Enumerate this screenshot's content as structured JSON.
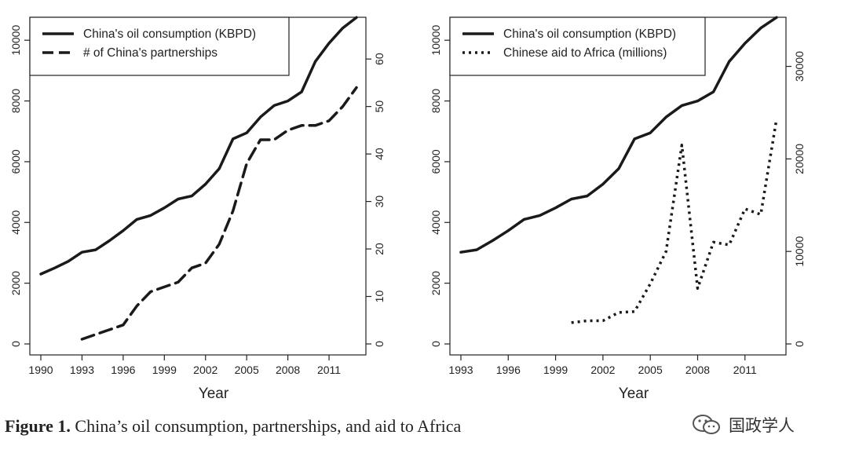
{
  "chart_data": [
    {
      "type": "line",
      "xlabel": "Year",
      "x_ticks": [
        "1990",
        "1993",
        "1996",
        "1999",
        "2002",
        "2005",
        "2008",
        "2011"
      ],
      "xlim": [
        1990,
        2013
      ],
      "y_left_ticks": [
        "0",
        "2000",
        "4000",
        "6000",
        "8000",
        "10000"
      ],
      "ylim_left": [
        0,
        10600
      ],
      "y_right_ticks": [
        "0",
        "10",
        "20",
        "30",
        "40",
        "50",
        "60"
      ],
      "ylim_right": [
        0,
        67.8
      ],
      "legend_position": "top-left",
      "series": [
        {
          "name": "China's oil consumption (KBPD)",
          "axis": "left",
          "style": "solid",
          "x": [
            1990,
            1991,
            1992,
            1993,
            1994,
            1995,
            1996,
            1997,
            1998,
            1999,
            2000,
            2001,
            2002,
            2003,
            2004,
            2005,
            2006,
            2007,
            2008,
            2009,
            2010,
            2011,
            2012,
            2013
          ],
          "values": [
            2300,
            2500,
            2720,
            3020,
            3100,
            3400,
            3730,
            4100,
            4230,
            4480,
            4770,
            4870,
            5260,
            5770,
            6750,
            6950,
            7470,
            7850,
            8000,
            8300,
            9300,
            9900,
            10400,
            10750
          ]
        },
        {
          "name": "# of China's partnerships",
          "axis": "right",
          "style": "dashed",
          "x": [
            1993,
            1994,
            1995,
            1996,
            1997,
            1998,
            1999,
            2000,
            2001,
            2002,
            2003,
            2004,
            2005,
            2006,
            2007,
            2008,
            2009,
            2010,
            2011,
            2012,
            2013
          ],
          "values": [
            1,
            2,
            3,
            4,
            8,
            11,
            12,
            13,
            16,
            17,
            21,
            28,
            38,
            43,
            43,
            45,
            46,
            46,
            47,
            50,
            54
          ]
        }
      ]
    },
    {
      "type": "line",
      "xlabel": "Year",
      "x_ticks": [
        "1993",
        "1996",
        "1999",
        "2002",
        "2005",
        "2008",
        "2011"
      ],
      "xlim": [
        1993,
        2013
      ],
      "y_left_ticks": [
        "0",
        "2000",
        "4000",
        "6000",
        "8000",
        "10000"
      ],
      "ylim_left": [
        0,
        10600
      ],
      "y_right_ticks": [
        "0",
        "10000",
        "20000",
        "30000"
      ],
      "ylim_right": [
        0,
        34800
      ],
      "legend_position": "top-left",
      "series": [
        {
          "name": "China's oil consumption (KBPD)",
          "axis": "left",
          "style": "solid",
          "x": [
            1993,
            1994,
            1995,
            1996,
            1997,
            1998,
            1999,
            2000,
            2001,
            2002,
            2003,
            2004,
            2005,
            2006,
            2007,
            2008,
            2009,
            2010,
            2011,
            2012,
            2013
          ],
          "values": [
            3020,
            3100,
            3400,
            3730,
            4100,
            4230,
            4480,
            4770,
            4870,
            5260,
            5770,
            6750,
            6950,
            7470,
            7850,
            8000,
            8300,
            9300,
            9900,
            10400,
            10750
          ]
        },
        {
          "name": "Chinese aid to Africa (millions)",
          "axis": "right",
          "style": "dotted",
          "x": [
            2000,
            2001,
            2002,
            2003,
            2004,
            2005,
            2006,
            2007,
            2008,
            2009,
            2010,
            2011,
            2012,
            2013
          ],
          "values": [
            2300,
            2500,
            2500,
            3400,
            3500,
            6500,
            10000,
            21500,
            6000,
            11000,
            10700,
            14600,
            14000,
            24300
          ]
        }
      ]
    }
  ],
  "caption": {
    "label": "Figure 1.",
    "text": " China’s oil consumption, partnerships, and aid to Africa"
  },
  "watermark": {
    "text": "国政学人",
    "icon": "wechat-icon"
  }
}
